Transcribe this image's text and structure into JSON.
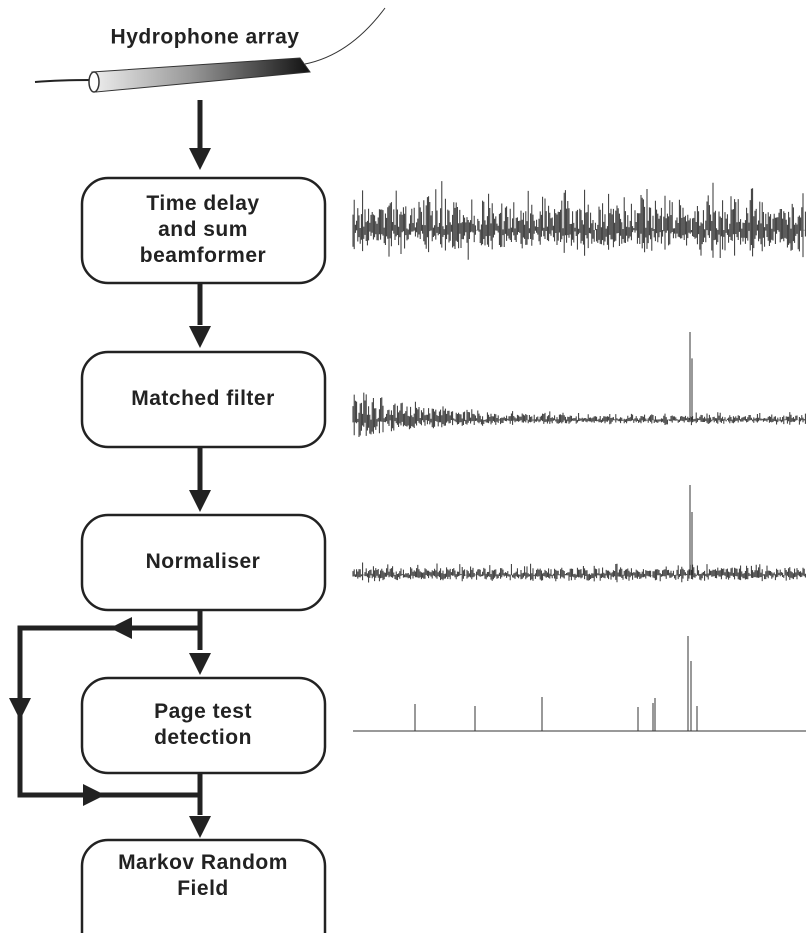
{
  "title": "Hydrophone array",
  "nodes": [
    {
      "lines": [
        "Time delay",
        "and sum",
        "beamformer"
      ]
    },
    {
      "lines": [
        "Matched filter"
      ]
    },
    {
      "lines": [
        "Normaliser"
      ]
    },
    {
      "lines": [
        "Page test",
        "detection"
      ]
    },
    {
      "lines": [
        "Markov Random",
        "Field"
      ]
    }
  ]
}
